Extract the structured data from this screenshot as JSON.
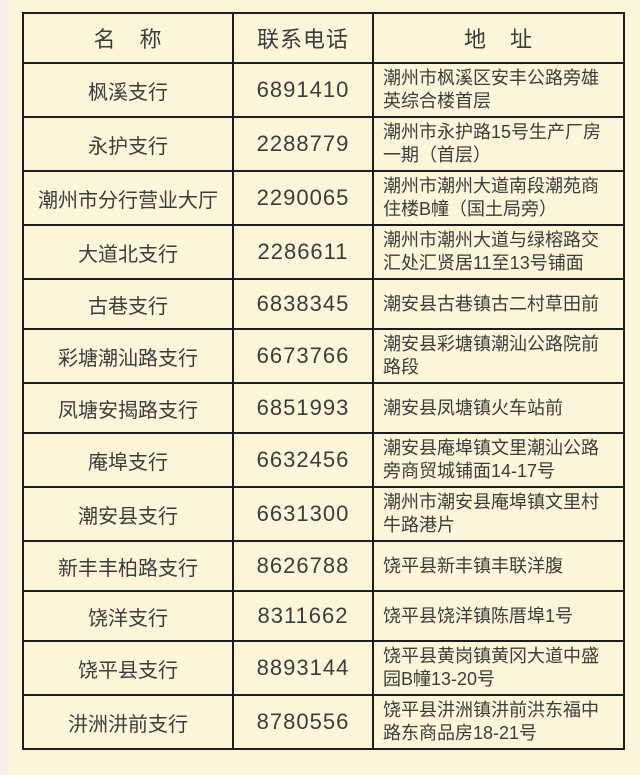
{
  "colors": {
    "page_bg": "#fbf6da",
    "strip_bg": "#f7eeee",
    "border_color": "#1d1d1d",
    "text_color": "#3c3c3c"
  },
  "table": {
    "headers": [
      "名　称",
      "联系电话",
      "地　址"
    ],
    "rows": [
      {
        "name": "枫溪支行",
        "phone": "6891410",
        "address": "潮州市枫溪区安丰公路旁雄英综合楼首层"
      },
      {
        "name": "永护支行",
        "phone": "2288779",
        "address": "潮州市永护路15号生产厂房一期（首层）"
      },
      {
        "name": "潮州市分行营业大厅",
        "phone": "2290065",
        "address": "潮州市潮州大道南段潮苑商住楼B幢（国土局旁）"
      },
      {
        "name": "大道北支行",
        "phone": "2286611",
        "address": "潮州市潮州大道与绿榕路交汇处汇贤居11至13号铺面"
      },
      {
        "name": "古巷支行",
        "phone": "6838345",
        "address": "潮安县古巷镇古二村草田前"
      },
      {
        "name": "彩塘潮汕路支行",
        "phone": "6673766",
        "address": "潮安县彩塘镇潮汕公路院前路段"
      },
      {
        "name": "凤塘安揭路支行",
        "phone": "6851993",
        "address": "潮安县凤塘镇火车站前"
      },
      {
        "name": "庵埠支行",
        "phone": "6632456",
        "address": "潮安县庵埠镇文里潮汕公路旁商贸城铺面14-17号"
      },
      {
        "name": "潮安县支行",
        "phone": "6631300",
        "address": "潮州市潮安县庵埠镇文里村牛路港片"
      },
      {
        "name": "新丰丰柏路支行",
        "phone": "8626788",
        "address": "饶平县新丰镇丰联洋腹"
      },
      {
        "name": "饶洋支行",
        "phone": "8311662",
        "address": "饶平县饶洋镇陈厝埠1号"
      },
      {
        "name": "饶平县支行",
        "phone": "8893144",
        "address": "饶平县黄岗镇黄冈大道中盛园B幢13-20号"
      },
      {
        "name": "汫洲汫前支行",
        "phone": "8780556",
        "address": "饶平县汫洲镇汫前洪东福中路东商品房18-21号"
      }
    ]
  }
}
